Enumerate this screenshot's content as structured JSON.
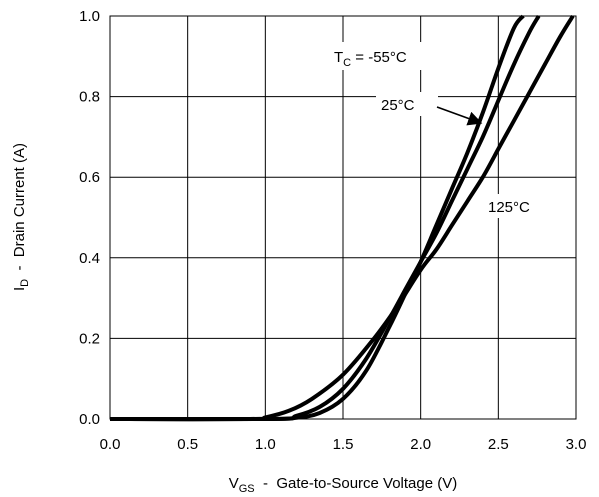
{
  "chart_data": {
    "type": "line",
    "xlabel": {
      "main": "V",
      "sub": "GS",
      "rest": "  -  Gate-to-Source Voltage (V)"
    },
    "ylabel": {
      "main": "I",
      "sub": "D",
      "rest": "  -  Drain Current (A)"
    },
    "xlim": [
      0.0,
      3.0
    ],
    "ylim": [
      0.0,
      1.0
    ],
    "xticks": [
      "0.0",
      "0.5",
      "1.0",
      "1.5",
      "2.0",
      "2.5",
      "3.0"
    ],
    "yticks": [
      "0.0",
      "0.2",
      "0.4",
      "0.6",
      "0.8",
      "1.0"
    ],
    "grid": true,
    "series": [
      {
        "key": "m55",
        "x": [
          0.0,
          1.0,
          1.2,
          1.35,
          1.5,
          1.65,
          1.8,
          1.9,
          2.0,
          2.1,
          2.2,
          2.3,
          2.4,
          2.5,
          2.6,
          2.66
        ],
        "y": [
          0.0,
          0.0,
          0.003,
          0.015,
          0.05,
          0.12,
          0.23,
          0.31,
          0.39,
          0.48,
          0.57,
          0.66,
          0.76,
          0.87,
          0.97,
          1.0
        ]
      },
      {
        "key": "25",
        "x": [
          0.0,
          1.05,
          1.2,
          1.35,
          1.5,
          1.65,
          1.8,
          1.9,
          2.0,
          2.1,
          2.2,
          2.3,
          2.4,
          2.5,
          2.6,
          2.7,
          2.76
        ],
        "y": [
          0.0,
          0.0,
          0.008,
          0.03,
          0.075,
          0.15,
          0.25,
          0.32,
          0.39,
          0.46,
          0.54,
          0.62,
          0.7,
          0.79,
          0.88,
          0.96,
          1.0
        ]
      },
      {
        "key": "125",
        "x": [
          0.0,
          0.9,
          1.0,
          1.15,
          1.3,
          1.5,
          1.7,
          1.85,
          2.0,
          2.1,
          2.2,
          2.3,
          2.4,
          2.5,
          2.6,
          2.7,
          2.8,
          2.9,
          2.98
        ],
        "y": [
          0.0,
          0.0,
          0.004,
          0.02,
          0.05,
          0.11,
          0.2,
          0.28,
          0.37,
          0.42,
          0.48,
          0.54,
          0.6,
          0.67,
          0.74,
          0.81,
          0.88,
          0.95,
          1.0
        ]
      }
    ],
    "annotations": {
      "tc": {
        "main": "T",
        "sub": "C",
        "rest": " = -55°C"
      },
      "t25": "25°C",
      "t125": "125°C"
    }
  }
}
